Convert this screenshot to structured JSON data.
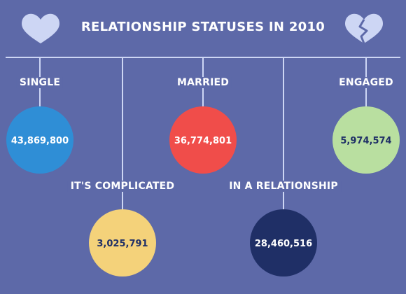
{
  "chart_data": {
    "type": "bubble",
    "title": "RELATIONSHIP STATUSES IN 2010",
    "categories": [
      "SINGLE",
      "IT'S COMPLICATED",
      "MARRIED",
      "IN A RELATIONSHIP",
      "ENGAGED"
    ],
    "values": [
      43869800,
      3025791,
      36774801,
      28460516,
      5974574
    ],
    "value_labels": [
      "43,869,800",
      "3,025,791",
      "36,774,801",
      "28,460,516",
      "5,974,574"
    ],
    "colors": [
      "#2f8ed6",
      "#f4d27a",
      "#f04d4a",
      "#1f2f66",
      "#b9dfa0"
    ],
    "value_text_colors": [
      "#ffffff",
      "#1f2f66",
      "#ffffff",
      "#ffffff",
      "#1f2f66"
    ]
  },
  "icons": {
    "left": "heart-icon",
    "right": "broken-heart-icon",
    "color": "#cdd6f4"
  },
  "background_color": "#5d69a8",
  "line_color": "#cdd6f4"
}
